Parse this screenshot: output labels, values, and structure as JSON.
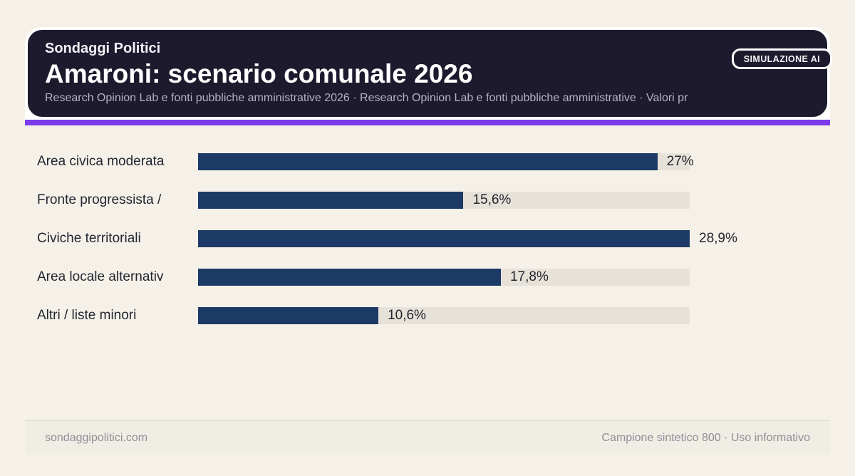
{
  "badge": {
    "label": "SIMULAZIONE AI"
  },
  "header": {
    "kicker": "Sondaggi Politici",
    "title": "Amaroni: scenario comunale 2026",
    "subtitle": "Research Opinion Lab e fonti pubbliche amministrative 2026 · Research Opinion Lab e fonti pubbliche amministrative · Valori pr"
  },
  "chart_data": {
    "type": "bar",
    "orientation": "horizontal",
    "title": "Amaroni: scenario comunale 2026",
    "categories": [
      "Area civica moderata",
      "Fronte progressista /",
      "Civiche territoriali",
      "Area locale alternativ",
      "Altri / liste minori"
    ],
    "values": [
      27,
      15.6,
      28.9,
      17.8,
      10.6
    ],
    "value_labels": [
      "27%",
      "15,6%",
      "28,9%",
      "17,8%",
      "10,6%"
    ],
    "unit": "%",
    "axis_max": 28.9,
    "grid": false,
    "legend": false,
    "bar_color": "#1d3a66",
    "track_color": "#e7e2d9"
  },
  "footer": {
    "left": "sondaggipolitici.com",
    "right": "Campione sintetico 800 · Uso informativo"
  },
  "colors": {
    "background": "#f6f1e8",
    "header_background": "#1d1a2e",
    "accent": "#7c3aed",
    "bar": "#1d3a66",
    "track": "#e7e2d9",
    "text_dark": "#1f2430",
    "text_muted": "#8f8e96",
    "subtitle": "#b4b2c3"
  }
}
